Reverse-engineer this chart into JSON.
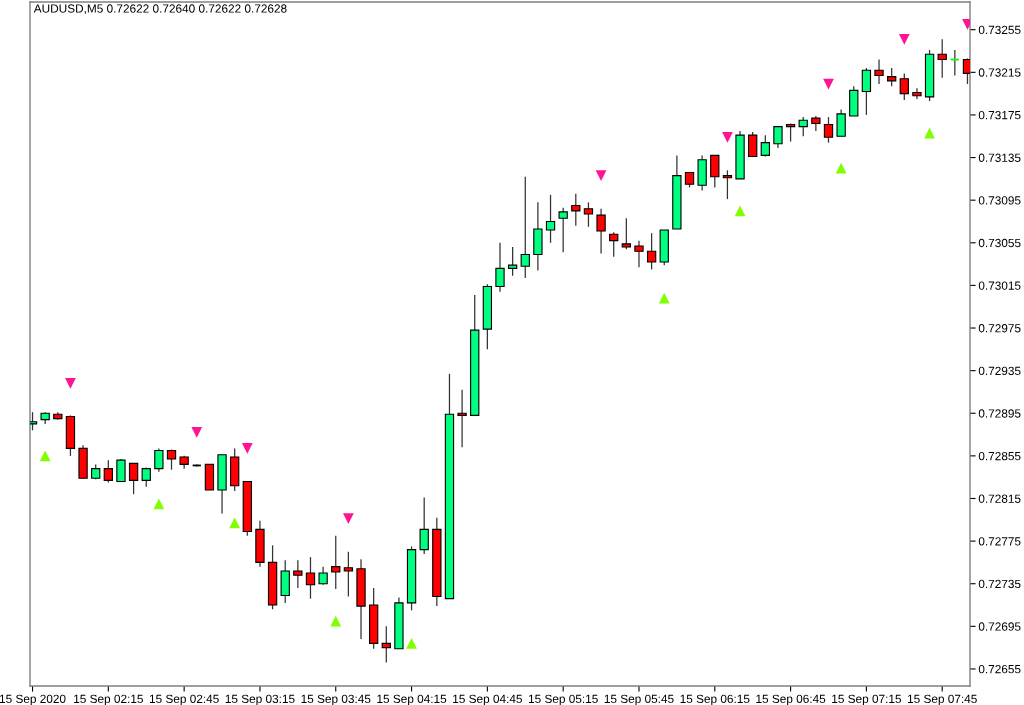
{
  "chart_data": {
    "type": "candlestick",
    "title": "AUDUSD,M5 0.72622 0.72640 0.72622 0.72628",
    "x": [
      "2020-09-15T01:45",
      "2020-09-15T01:50",
      "2020-09-15T01:55",
      "2020-09-15T02:00",
      "2020-09-15T02:05",
      "2020-09-15T02:10",
      "2020-09-15T02:15",
      "2020-09-15T02:20",
      "2020-09-15T02:25",
      "2020-09-15T02:30",
      "2020-09-15T02:35",
      "2020-09-15T02:40",
      "2020-09-15T02:45",
      "2020-09-15T02:50",
      "2020-09-15T02:55",
      "2020-09-15T03:00",
      "2020-09-15T03:05",
      "2020-09-15T03:10",
      "2020-09-15T03:15",
      "2020-09-15T03:20",
      "2020-09-15T03:25",
      "2020-09-15T03:30",
      "2020-09-15T03:35",
      "2020-09-15T03:40",
      "2020-09-15T03:45",
      "2020-09-15T03:50",
      "2020-09-15T03:55",
      "2020-09-15T04:00",
      "2020-09-15T04:05",
      "2020-09-15T04:10",
      "2020-09-15T04:15",
      "2020-09-15T04:20",
      "2020-09-15T04:25",
      "2020-09-15T04:30",
      "2020-09-15T04:35",
      "2020-09-15T04:40",
      "2020-09-15T04:45",
      "2020-09-15T04:50",
      "2020-09-15T04:55",
      "2020-09-15T05:00",
      "2020-09-15T05:05",
      "2020-09-15T05:10",
      "2020-09-15T05:15",
      "2020-09-15T05:20",
      "2020-09-15T05:25",
      "2020-09-15T05:30",
      "2020-09-15T05:35",
      "2020-09-15T05:40",
      "2020-09-15T05:45",
      "2020-09-15T05:50",
      "2020-09-15T05:55",
      "2020-09-15T06:00",
      "2020-09-15T06:05",
      "2020-09-15T06:10",
      "2020-09-15T06:15",
      "2020-09-15T06:20",
      "2020-09-15T06:25",
      "2020-09-15T06:30",
      "2020-09-15T06:35",
      "2020-09-15T06:40",
      "2020-09-15T06:45",
      "2020-09-15T06:50",
      "2020-09-15T06:55",
      "2020-09-15T07:00",
      "2020-09-15T07:05",
      "2020-09-15T07:10",
      "2020-09-15T07:15",
      "2020-09-15T07:20",
      "2020-09-15T07:25",
      "2020-09-15T07:30",
      "2020-09-15T07:35",
      "2020-09-15T07:40",
      "2020-09-15T07:45",
      "2020-09-15T07:50",
      "2020-09-15T07:55"
    ],
    "ohlc": [
      [
        0.72885,
        0.72896,
        0.72879,
        0.72887
      ],
      [
        0.72889,
        0.72896,
        0.72885,
        0.72895
      ],
      [
        0.72894,
        0.72896,
        0.72889,
        0.7289
      ],
      [
        0.72892,
        0.72893,
        0.72855,
        0.72862
      ],
      [
        0.72862,
        0.72865,
        0.72834,
        0.72834
      ],
      [
        0.72834,
        0.72847,
        0.72833,
        0.72843
      ],
      [
        0.72843,
        0.72851,
        0.7283,
        0.72832
      ],
      [
        0.72831,
        0.72852,
        0.72831,
        0.72851
      ],
      [
        0.72848,
        0.72848,
        0.72819,
        0.72832
      ],
      [
        0.72832,
        0.72844,
        0.72826,
        0.72843
      ],
      [
        0.72843,
        0.72862,
        0.7284,
        0.7286
      ],
      [
        0.7286,
        0.72861,
        0.72842,
        0.72852
      ],
      [
        0.72854,
        0.72855,
        0.72843,
        0.72847
      ],
      [
        0.72846,
        0.72847,
        0.72845,
        0.72846
      ],
      [
        0.72847,
        0.72847,
        0.72823,
        0.72823
      ],
      [
        0.72823,
        0.72856,
        0.72801,
        0.72856
      ],
      [
        0.72854,
        0.72862,
        0.72822,
        0.72827
      ],
      [
        0.72831,
        0.72831,
        0.7278,
        0.72784
      ],
      [
        0.72786,
        0.72794,
        0.72751,
        0.72755
      ],
      [
        0.72755,
        0.72771,
        0.72711,
        0.72715
      ],
      [
        0.72724,
        0.72757,
        0.72717,
        0.72747
      ],
      [
        0.72747,
        0.72757,
        0.72731,
        0.72743
      ],
      [
        0.72745,
        0.7276,
        0.72721,
        0.72734
      ],
      [
        0.72735,
        0.72751,
        0.72734,
        0.72745
      ],
      [
        0.72751,
        0.7278,
        0.7273,
        0.72746
      ],
      [
        0.7275,
        0.72765,
        0.72723,
        0.72747
      ],
      [
        0.72749,
        0.72758,
        0.72683,
        0.72714
      ],
      [
        0.72715,
        0.72731,
        0.72674,
        0.72679
      ],
      [
        0.72679,
        0.72695,
        0.72661,
        0.72675
      ],
      [
        0.72674,
        0.72722,
        0.72674,
        0.72717
      ],
      [
        0.72717,
        0.7277,
        0.7271,
        0.72767
      ],
      [
        0.72767,
        0.72816,
        0.72763,
        0.72786
      ],
      [
        0.72786,
        0.72797,
        0.72714,
        0.72723
      ],
      [
        0.72721,
        0.72932,
        0.72721,
        0.72894
      ],
      [
        0.72895,
        0.72917,
        0.72863,
        0.72893
      ],
      [
        0.72893,
        0.73006,
        0.72893,
        0.72973
      ],
      [
        0.72974,
        0.73016,
        0.72955,
        0.73014
      ],
      [
        0.73014,
        0.73055,
        0.73009,
        0.73031
      ],
      [
        0.73031,
        0.73051,
        0.73024,
        0.73034
      ],
      [
        0.73033,
        0.73117,
        0.73022,
        0.73044
      ],
      [
        0.73044,
        0.73093,
        0.73029,
        0.73068
      ],
      [
        0.73067,
        0.731,
        0.73055,
        0.73075
      ],
      [
        0.73078,
        0.73088,
        0.73046,
        0.73084
      ],
      [
        0.7309,
        0.73101,
        0.73071,
        0.73085
      ],
      [
        0.73087,
        0.73093,
        0.7307,
        0.73082
      ],
      [
        0.73081,
        0.73087,
        0.73045,
        0.73066
      ],
      [
        0.73063,
        0.73065,
        0.73042,
        0.73057
      ],
      [
        0.73054,
        0.73078,
        0.73049,
        0.73051
      ],
      [
        0.73052,
        0.73057,
        0.73032,
        0.73047
      ],
      [
        0.73047,
        0.73064,
        0.7303,
        0.73037
      ],
      [
        0.73037,
        0.73067,
        0.73034,
        0.73067
      ],
      [
        0.73068,
        0.73137,
        0.73068,
        0.73118
      ],
      [
        0.73121,
        0.73121,
        0.73107,
        0.7311
      ],
      [
        0.73109,
        0.73137,
        0.73104,
        0.73133
      ],
      [
        0.73137,
        0.73137,
        0.73107,
        0.73117
      ],
      [
        0.73118,
        0.73123,
        0.73096,
        0.73116
      ],
      [
        0.73115,
        0.7316,
        0.73115,
        0.73156
      ],
      [
        0.73156,
        0.73159,
        0.73136,
        0.73136
      ],
      [
        0.73137,
        0.73156,
        0.73136,
        0.73149
      ],
      [
        0.73148,
        0.73164,
        0.73144,
        0.73164
      ],
      [
        0.73166,
        0.73167,
        0.7315,
        0.73164
      ],
      [
        0.73164,
        0.73173,
        0.73155,
        0.7317
      ],
      [
        0.73172,
        0.73174,
        0.7316,
        0.73167
      ],
      [
        0.73166,
        0.73173,
        0.73149,
        0.73154
      ],
      [
        0.73155,
        0.7318,
        0.73155,
        0.73176
      ],
      [
        0.73174,
        0.73202,
        0.73174,
        0.73198
      ],
      [
        0.73197,
        0.73219,
        0.73175,
        0.73217
      ],
      [
        0.73217,
        0.73227,
        0.73204,
        0.73212
      ],
      [
        0.73211,
        0.73219,
        0.73202,
        0.73207
      ],
      [
        0.73209,
        0.73214,
        0.73189,
        0.73195
      ],
      [
        0.73196,
        0.732,
        0.7319,
        0.73193
      ],
      [
        0.73192,
        0.73236,
        0.73188,
        0.73232
      ],
      [
        0.73232,
        0.73246,
        0.7321,
        0.73227
      ],
      [
        0.73227,
        0.73236,
        0.73212,
        0.73227
      ],
      [
        0.73227,
        0.73228,
        0.73204,
        0.73214
      ]
    ],
    "colors": [
      "#00ff80",
      "#00ff80",
      "#ff0000",
      "#ff0000",
      "#ff0000",
      "#00ff80",
      "#ff0000",
      "#00ff80",
      "#ff0000",
      "#00ff80",
      "#00ff80",
      "#ff0000",
      "#ff0000",
      "#000000",
      "#ff0000",
      "#00ff80",
      "#ff0000",
      "#ff0000",
      "#ff0000",
      "#ff0000",
      "#00ff80",
      "#ff0000",
      "#ff0000",
      "#00ff80",
      "#ff0000",
      "#ff0000",
      "#ff0000",
      "#ff0000",
      "#ff0000",
      "#00ff80",
      "#00ff80",
      "#00ff80",
      "#ff0000",
      "#00ff80",
      "#ff0000",
      "#00ff80",
      "#00ff80",
      "#00ff80",
      "#00ff80",
      "#00ff80",
      "#00ff80",
      "#00ff80",
      "#00ff80",
      "#ff0000",
      "#ff0000",
      "#ff0000",
      "#ff0000",
      "#ff0000",
      "#ff0000",
      "#ff0000",
      "#00ff80",
      "#00ff80",
      "#ff0000",
      "#00ff80",
      "#ff0000",
      "#ff0000",
      "#00ff80",
      "#ff0000",
      "#00ff80",
      "#00ff80",
      "#ff0000",
      "#00ff80",
      "#ff0000",
      "#ff0000",
      "#00ff80",
      "#00ff80",
      "#00ff80",
      "#ff0000",
      "#ff0000",
      "#ff0000",
      "#ff0000",
      "#00ff80",
      "#ff0000",
      "#00ff00",
      "#ff0000"
    ],
    "series": [
      {
        "type": "scatter",
        "color": "#7fff00",
        "marker": "triangle",
        "x": [
          "2020-09-15T01:50",
          "2020-09-15T02:35",
          "2020-09-15T03:05",
          "2020-09-15T03:45",
          "2020-09-15T04:15",
          "2020-09-15T05:55",
          "2020-09-15T06:25",
          "2020-09-15T07:05",
          "2020-09-15T07:40"
        ],
        "values": [
          0.72855,
          0.7281,
          0.72792,
          0.727,
          0.72679,
          0.73003,
          0.73085,
          0.73125,
          0.73158
        ]
      },
      {
        "type": "scatter",
        "color": "#ff1493",
        "marker": "triangle",
        "x": [
          "2020-09-15T02:00",
          "2020-09-15T02:50",
          "2020-09-15T03:10",
          "2020-09-15T03:50",
          "2020-09-15T05:30",
          "2020-09-15T06:20",
          "2020-09-15T07:00",
          "2020-09-15T07:30",
          "2020-09-15T07:55"
        ],
        "values": [
          0.72923,
          0.72877,
          0.72862,
          0.72796,
          0.73118,
          0.73154,
          0.73204,
          0.73246,
          0.7326
        ]
      }
    ],
    "xlim": [
      "2020-09-15T01:44",
      "2020-09-15T07:56"
    ],
    "xticks": [
      {
        "value": "2020-09-15T01:45",
        "label": "15 Sep 2020"
      },
      {
        "value": "2020-09-15T02:15",
        "label": "15 Sep 02:15"
      },
      {
        "value": "2020-09-15T02:45",
        "label": "15 Sep 02:45"
      },
      {
        "value": "2020-09-15T03:15",
        "label": "15 Sep 03:15"
      },
      {
        "value": "2020-09-15T03:45",
        "label": "15 Sep 03:45"
      },
      {
        "value": "2020-09-15T04:15",
        "label": "15 Sep 04:15"
      },
      {
        "value": "2020-09-15T04:45",
        "label": "15 Sep 04:45"
      },
      {
        "value": "2020-09-15T05:15",
        "label": "15 Sep 05:15"
      },
      {
        "value": "2020-09-15T05:45",
        "label": "15 Sep 05:45"
      },
      {
        "value": "2020-09-15T06:15",
        "label": "15 Sep 06:15"
      },
      {
        "value": "2020-09-15T06:45",
        "label": "15 Sep 06:45"
      },
      {
        "value": "2020-09-15T07:15",
        "label": "15 Sep 07:15"
      },
      {
        "value": "2020-09-15T07:45",
        "label": "15 Sep 07:45"
      }
    ],
    "ylim": [
      0.72639,
      0.73281
    ],
    "yticks": [
      0.72655,
      0.72695,
      0.72735,
      0.72775,
      0.72815,
      0.72855,
      0.72895,
      0.72935,
      0.72975,
      0.73015,
      0.73055,
      0.73095,
      0.73135,
      0.73175,
      0.73215,
      0.73255
    ],
    "grid": false
  }
}
